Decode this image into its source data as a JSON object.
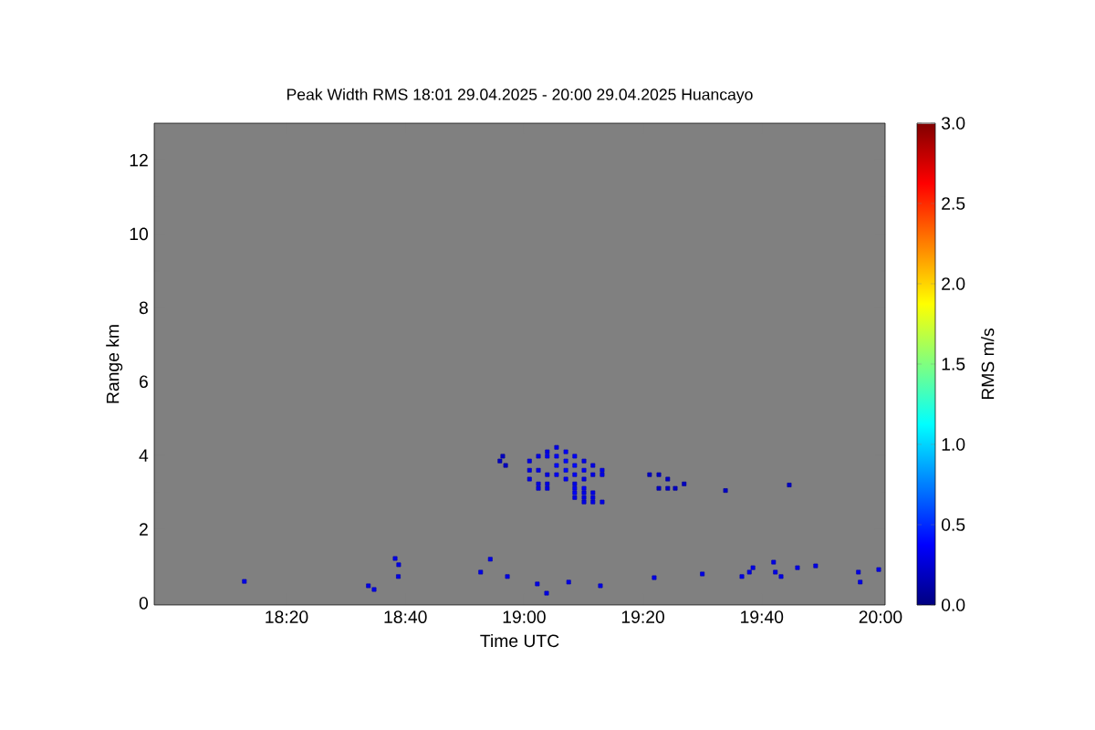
{
  "chart_data": {
    "type": "scatter",
    "title": "Peak Width RMS   18:01 29.04.2025 - 20:00 29.04.2025 Huancayo",
    "xlabel": "Time UTC",
    "ylabel": "Range km",
    "clabel": "RMS m/s",
    "xlim": [
      17.962,
      20.013
    ],
    "ylim": [
      -0.05,
      13
    ],
    "xticks": [
      {
        "value": 18.3333,
        "label": "18:20"
      },
      {
        "value": 18.6667,
        "label": "18:40"
      },
      {
        "value": 19.0,
        "label": "19:00"
      },
      {
        "value": 19.3333,
        "label": "19:20"
      },
      {
        "value": 19.6667,
        "label": "19:40"
      },
      {
        "value": 20.0,
        "label": "20:00"
      }
    ],
    "yticks": [
      0,
      2,
      4,
      6,
      8,
      10,
      12
    ],
    "clim": [
      0,
      3
    ],
    "cticks": [
      {
        "value": 0,
        "label": "0.0"
      },
      {
        "value": 0.5,
        "label": "0.5"
      },
      {
        "value": 1,
        "label": "1.0"
      },
      {
        "value": 1.5,
        "label": "1.5"
      },
      {
        "value": 2,
        "label": "2.0"
      },
      {
        "value": 2.5,
        "label": "2.5"
      },
      {
        "value": 3,
        "label": "3.0"
      }
    ],
    "marker": "square",
    "grid": false,
    "x": [
      18.932,
      18.948,
      18.94,
      19.015,
      19.015,
      19.015,
      19.04,
      19.04,
      19.04,
      19.04,
      19.065,
      19.065,
      19.065,
      19.065,
      19.065,
      19.091,
      19.091,
      19.091,
      19.091,
      19.117,
      19.117,
      19.117,
      19.117,
      19.142,
      19.142,
      19.142,
      19.142,
      19.168,
      19.168,
      19.168,
      19.193,
      19.193,
      19.219,
      19.219,
      19.142,
      19.142,
      19.142,
      19.168,
      19.168,
      19.168,
      19.168,
      19.193,
      19.193,
      19.193,
      19.219,
      19.352,
      19.378,
      19.403,
      19.378,
      19.403,
      19.424,
      19.449,
      19.565,
      19.744,
      18.215,
      18.563,
      18.579,
      18.638,
      18.648,
      18.647,
      18.878,
      18.905,
      18.953,
      19.037,
      19.063,
      19.125,
      19.214,
      19.365,
      19.5,
      19.611,
      19.632,
      19.642,
      19.7,
      19.705,
      19.721,
      19.767,
      19.818,
      19.938,
      19.943,
      19.995
    ],
    "values": [
      3.85,
      3.73,
      3.98,
      3.85,
      3.6,
      3.36,
      3.98,
      3.6,
      3.23,
      3.11,
      3.48,
      3.23,
      3.11,
      4.1,
      3.98,
      4.22,
      3.98,
      3.73,
      3.48,
      4.1,
      3.85,
      3.6,
      3.36,
      3.98,
      3.73,
      3.48,
      3.23,
      3.85,
      3.6,
      3.36,
      3.73,
      3.48,
      3.6,
      3.48,
      3.11,
      2.99,
      2.86,
      3.11,
      2.99,
      2.86,
      2.74,
      2.99,
      2.86,
      2.74,
      2.74,
      3.48,
      3.48,
      3.36,
      3.11,
      3.11,
      3.11,
      3.23,
      3.05,
      3.2,
      0.59,
      0.47,
      0.37,
      1.21,
      1.04,
      0.72,
      0.84,
      1.19,
      0.72,
      0.52,
      0.27,
      0.57,
      0.47,
      0.69,
      0.79,
      0.72,
      0.84,
      0.96,
      1.11,
      0.84,
      0.72,
      0.96,
      1.01,
      0.84,
      0.57,
      0.91
    ],
    "cvalues": [
      0.2,
      0.2,
      0.2,
      0.3,
      0.3,
      0.3,
      0.3,
      0.3,
      0.3,
      0.3,
      0.3,
      0.3,
      0.3,
      0.3,
      0.35,
      0.3,
      0.35,
      0.4,
      0.35,
      0.35,
      0.4,
      0.4,
      0.35,
      0.35,
      0.4,
      0.35,
      0.3,
      0.3,
      0.35,
      0.3,
      0.3,
      0.3,
      0.3,
      0.3,
      0.35,
      0.35,
      0.3,
      0.35,
      0.3,
      0.3,
      0.3,
      0.3,
      0.3,
      0.3,
      0.3,
      0.2,
      0.2,
      0.2,
      0.2,
      0.2,
      0.2,
      0.2,
      0.2,
      0.2,
      0.3,
      0.3,
      0.3,
      0.3,
      0.3,
      0.3,
      0.3,
      0.3,
      0.3,
      0.3,
      0.3,
      0.3,
      0.3,
      0.3,
      0.3,
      0.3,
      0.3,
      0.3,
      0.3,
      0.3,
      0.3,
      0.3,
      0.3,
      0.3,
      0.3,
      0.3
    ]
  }
}
